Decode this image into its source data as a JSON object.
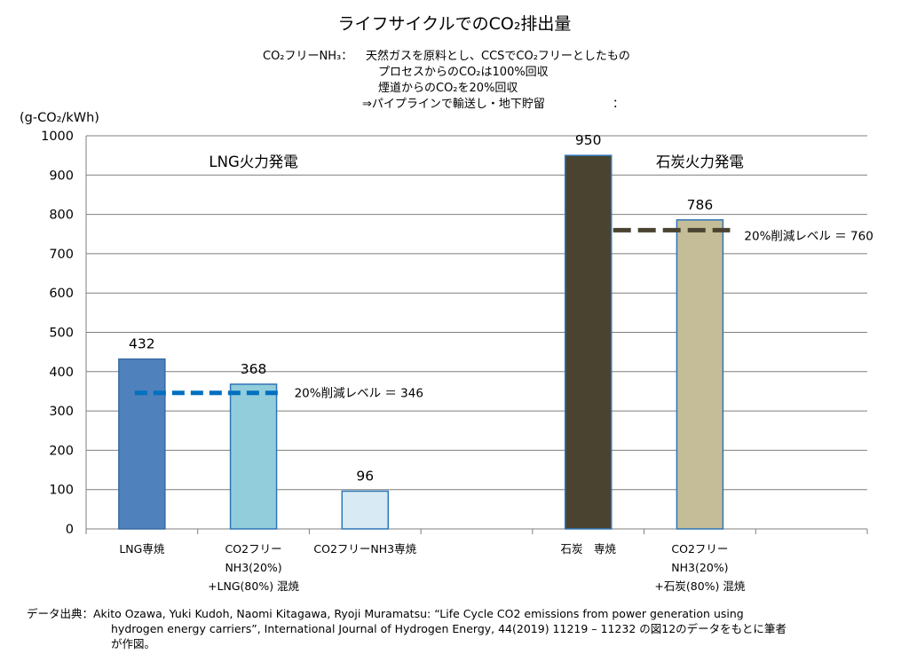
{
  "title": "ライフサイクルでのCO₂排出量",
  "notes": {
    "line1_label": "CO₂フリーNH₃：",
    "line1_text": "天然ガスを原料とし、CCSでCO₂フリーとしたもの",
    "line2": "プロセスからのCO₂は100%回収",
    "line3": "煙道からのCO₂を20%回収",
    "line4": "⇒パイプラインで輸送し・地下貯留",
    "line4_tail": "："
  },
  "chart_data": {
    "type": "bar",
    "ylabel": "(g-CO₂/kWh)",
    "ylim": [
      0,
      1000
    ],
    "yticks": [
      0,
      100,
      200,
      300,
      400,
      500,
      600,
      700,
      800,
      900,
      1000
    ],
    "grid": true,
    "groups": [
      "LNG火力発電",
      "石炭火力発電"
    ],
    "categories": [
      [
        "LNG専焼"
      ],
      [
        "CO2フリー",
        "NH3(20%)",
        "+LNG(80%) 混焼"
      ],
      [
        "CO2フリーNH3専焼"
      ],
      [
        ""
      ],
      [
        "石炭　専焼"
      ],
      [
        "CO2フリー",
        "NH3(20%)",
        "+石炭(80%) 混焼"
      ],
      [
        ""
      ]
    ],
    "bars": [
      {
        "value": 432,
        "label": "432",
        "color": "#4f81bd",
        "stroke": "#3a6aa3"
      },
      {
        "value": 368,
        "label": "368",
        "color": "#92cddc",
        "stroke": "#2e75b6"
      },
      {
        "value": 96,
        "label": "96",
        "color": "#d8ebf4",
        "stroke": "#2e75b6"
      },
      null,
      {
        "value": 950,
        "label": "950",
        "color": "#4a4330",
        "stroke": "#2e75b6"
      },
      {
        "value": 786,
        "label": "786",
        "color": "#c4bd97",
        "stroke": "#2e75b6"
      },
      null
    ],
    "reference_lines": [
      {
        "value": 346,
        "label": "20%削減レベル ＝ 346",
        "color": "#0070c0"
      },
      {
        "value": 760,
        "label": "20%削減レベル ＝ 760",
        "color": "#4a4330"
      }
    ]
  },
  "source": {
    "line1": "データ出典：Akito Ozawa, Yuki Kudoh, Naomi Kitagawa, Ryoji Muramatsu: “Life Cycle CO2 emissions from power generation using",
    "line2": "hydrogen energy carriers”, International Journal of Hydrogen Energy,  44(2019) 11219 – 11232 の図12のデータをもとに筆者",
    "line3": "が作図。"
  }
}
